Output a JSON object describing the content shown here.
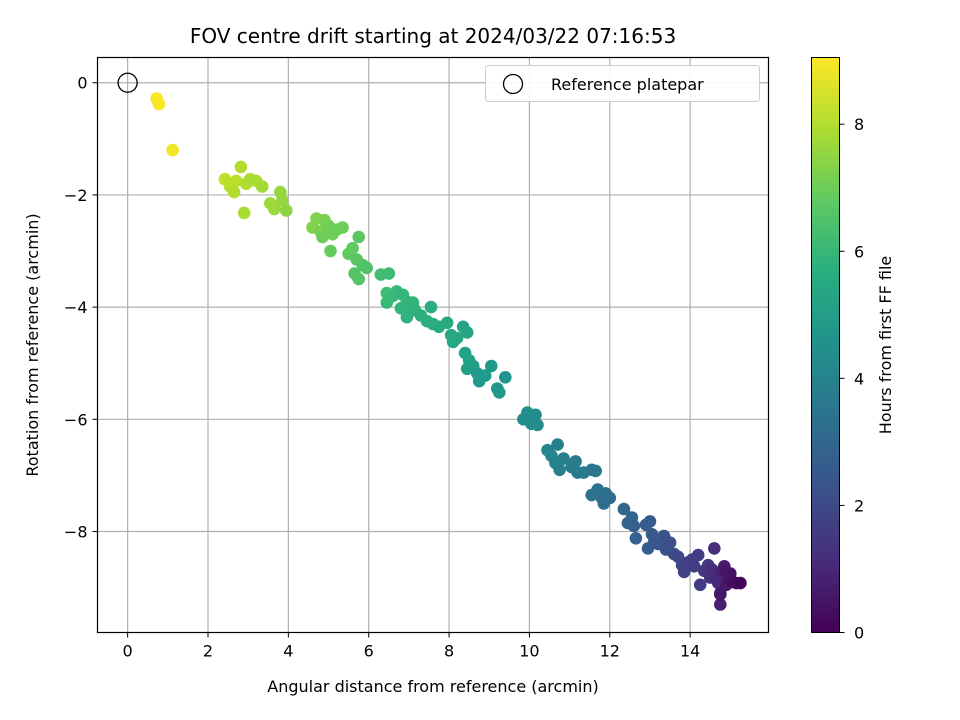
{
  "chart_data": {
    "type": "scatter",
    "title": "FOV centre drift starting at 2024/03/22 07:16:53",
    "xlabel": "Angular distance from reference (arcmin)",
    "ylabel": "Rotation from reference (arcmin)",
    "xlim": [
      -0.75,
      15.95
    ],
    "ylim": [
      -9.8,
      0.45
    ],
    "xticks": [
      0,
      2,
      4,
      6,
      8,
      10,
      12,
      14
    ],
    "yticks": [
      0,
      -2,
      -4,
      -6,
      -8
    ],
    "grid": true,
    "colormap": "viridis",
    "colorbar": {
      "label": "Hours from first FF file",
      "range": [
        0,
        9.05
      ],
      "ticks": [
        0,
        2,
        4,
        6,
        8
      ]
    },
    "legend": {
      "position": "top-right",
      "entries": [
        {
          "label": "Reference platepar",
          "marker": "open-circle"
        }
      ]
    },
    "reference_point": {
      "x": 0,
      "y": 0
    },
    "points": [
      [
        0.72,
        -0.28,
        9.0
      ],
      [
        0.78,
        -0.38,
        9.0
      ],
      [
        1.12,
        -1.2,
        8.9
      ],
      [
        2.42,
        -1.72,
        8.2
      ],
      [
        2.55,
        -1.85,
        8.1
      ],
      [
        2.7,
        -1.75,
        8.1
      ],
      [
        2.82,
        -1.5,
        8.0
      ],
      [
        2.65,
        -1.95,
        8.0
      ],
      [
        2.95,
        -1.8,
        8.0
      ],
      [
        3.05,
        -1.72,
        7.9
      ],
      [
        3.2,
        -1.75,
        7.9
      ],
      [
        3.35,
        -1.85,
        7.8
      ],
      [
        2.9,
        -2.32,
        7.9
      ],
      [
        3.55,
        -2.15,
        7.7
      ],
      [
        3.65,
        -2.25,
        7.7
      ],
      [
        3.8,
        -1.95,
        7.6
      ],
      [
        3.85,
        -2.1,
        7.6
      ],
      [
        3.95,
        -2.28,
        7.5
      ],
      [
        4.6,
        -2.58,
        7.3
      ],
      [
        4.7,
        -2.42,
        7.3
      ],
      [
        4.8,
        -2.65,
        7.2
      ],
      [
        4.9,
        -2.45,
        7.2
      ],
      [
        5.0,
        -2.55,
        7.1
      ],
      [
        5.1,
        -2.7,
        7.1
      ],
      [
        5.2,
        -2.62,
        7.0
      ],
      [
        4.85,
        -2.75,
        7.0
      ],
      [
        5.35,
        -2.58,
        7.0
      ],
      [
        5.05,
        -3.0,
        6.9
      ],
      [
        5.5,
        -3.05,
        6.8
      ],
      [
        5.6,
        -2.95,
        6.8
      ],
      [
        5.7,
        -3.15,
        6.7
      ],
      [
        5.75,
        -2.75,
        6.7
      ],
      [
        5.85,
        -3.25,
        6.6
      ],
      [
        5.65,
        -3.4,
        6.6
      ],
      [
        5.95,
        -3.3,
        6.5
      ],
      [
        5.75,
        -3.5,
        6.6
      ],
      [
        6.3,
        -3.42,
        6.3
      ],
      [
        6.5,
        -3.4,
        6.2
      ],
      [
        6.45,
        -3.75,
        6.2
      ],
      [
        6.6,
        -3.8,
        6.1
      ],
      [
        6.7,
        -3.72,
        6.1
      ],
      [
        6.85,
        -3.78,
        6.0
      ],
      [
        6.95,
        -3.9,
        6.0
      ],
      [
        6.8,
        -4.02,
        5.9
      ],
      [
        7.0,
        -4.1,
        5.9
      ],
      [
        6.45,
        -3.92,
        6.1
      ],
      [
        7.1,
        -3.92,
        5.9
      ],
      [
        6.95,
        -4.18,
        5.8
      ],
      [
        7.15,
        -4.05,
        5.8
      ],
      [
        7.3,
        -4.15,
        5.7
      ],
      [
        7.45,
        -4.25,
        5.7
      ],
      [
        7.55,
        -4.0,
        5.6
      ],
      [
        7.6,
        -4.3,
        5.6
      ],
      [
        7.75,
        -4.35,
        5.5
      ],
      [
        7.95,
        -4.28,
        5.5
      ],
      [
        8.05,
        -4.5,
        5.4
      ],
      [
        8.2,
        -4.55,
        5.4
      ],
      [
        8.1,
        -4.62,
        5.4
      ],
      [
        8.35,
        -4.35,
        5.3
      ],
      [
        8.45,
        -4.45,
        5.3
      ],
      [
        8.4,
        -4.82,
        5.2
      ],
      [
        8.5,
        -4.95,
        5.2
      ],
      [
        8.6,
        -5.05,
        5.1
      ],
      [
        8.45,
        -5.1,
        5.1
      ],
      [
        8.7,
        -5.18,
        5.0
      ],
      [
        8.75,
        -5.32,
        5.0
      ],
      [
        8.9,
        -5.22,
        4.9
      ],
      [
        9.05,
        -5.05,
        4.9
      ],
      [
        9.2,
        -5.45,
        4.8
      ],
      [
        9.25,
        -5.52,
        4.8
      ],
      [
        9.4,
        -5.25,
        4.7
      ],
      [
        9.85,
        -6.0,
        4.5
      ],
      [
        9.95,
        -5.88,
        4.5
      ],
      [
        10.05,
        -6.0,
        4.4
      ],
      [
        10.15,
        -5.92,
        4.4
      ],
      [
        10.2,
        -6.1,
        4.3
      ],
      [
        10.05,
        -6.08,
        4.4
      ],
      [
        10.45,
        -6.55,
        4.1
      ],
      [
        10.55,
        -6.65,
        4.1
      ],
      [
        10.7,
        -6.45,
        4.0
      ],
      [
        10.65,
        -6.78,
        4.0
      ],
      [
        10.75,
        -6.9,
        3.9
      ],
      [
        10.85,
        -6.7,
        3.9
      ],
      [
        11.05,
        -6.85,
        3.8
      ],
      [
        11.15,
        -6.75,
        3.8
      ],
      [
        11.2,
        -6.95,
        3.7
      ],
      [
        11.35,
        -6.95,
        3.7
      ],
      [
        11.55,
        -6.9,
        3.6
      ],
      [
        11.65,
        -6.92,
        3.6
      ],
      [
        11.55,
        -7.35,
        3.4
      ],
      [
        11.7,
        -7.25,
        3.4
      ],
      [
        11.8,
        -7.4,
        3.3
      ],
      [
        11.9,
        -7.32,
        3.3
      ],
      [
        11.85,
        -7.5,
        3.2
      ],
      [
        12.0,
        -7.4,
        3.2
      ],
      [
        12.35,
        -7.6,
        3.0
      ],
      [
        12.45,
        -7.85,
        2.9
      ],
      [
        12.55,
        -7.75,
        2.9
      ],
      [
        12.6,
        -7.9,
        2.8
      ],
      [
        12.65,
        -8.12,
        2.8
      ],
      [
        12.9,
        -7.88,
        2.7
      ],
      [
        13.0,
        -7.82,
        2.6
      ],
      [
        13.05,
        -8.05,
        2.6
      ],
      [
        13.1,
        -8.2,
        2.5
      ],
      [
        12.95,
        -8.3,
        2.6
      ],
      [
        13.2,
        -8.22,
        2.4
      ],
      [
        13.35,
        -8.08,
        2.3
      ],
      [
        13.4,
        -8.32,
        2.3
      ],
      [
        13.5,
        -8.2,
        2.2
      ],
      [
        13.6,
        -8.4,
        2.1
      ],
      [
        13.7,
        -8.45,
        2.0
      ],
      [
        13.8,
        -8.6,
        1.9
      ],
      [
        13.85,
        -8.72,
        1.8
      ],
      [
        13.95,
        -8.55,
        1.8
      ],
      [
        14.05,
        -8.5,
        1.7
      ],
      [
        14.1,
        -8.62,
        1.6
      ],
      [
        14.2,
        -8.42,
        1.6
      ],
      [
        14.25,
        -8.95,
        1.6
      ],
      [
        14.35,
        -8.7,
        1.5
      ],
      [
        14.45,
        -8.6,
        1.4
      ],
      [
        14.5,
        -8.82,
        1.3
      ],
      [
        14.55,
        -8.68,
        1.2
      ],
      [
        14.6,
        -8.3,
        1.2
      ],
      [
        14.65,
        -8.78,
        1.1
      ],
      [
        14.7,
        -8.92,
        1.0
      ],
      [
        14.75,
        -9.1,
        0.9
      ],
      [
        14.75,
        -9.3,
        0.8
      ],
      [
        14.8,
        -8.7,
        0.8
      ],
      [
        14.85,
        -8.62,
        0.7
      ],
      [
        14.9,
        -8.95,
        0.6
      ],
      [
        14.95,
        -8.85,
        0.5
      ],
      [
        15.0,
        -8.75,
        0.4
      ],
      [
        15.05,
        -8.9,
        0.3
      ],
      [
        15.15,
        -8.92,
        0.2
      ],
      [
        15.25,
        -8.92,
        0.1
      ],
      [
        14.75,
        -9.12,
        0.6
      ],
      [
        14.9,
        -8.72,
        0.5
      ]
    ]
  }
}
